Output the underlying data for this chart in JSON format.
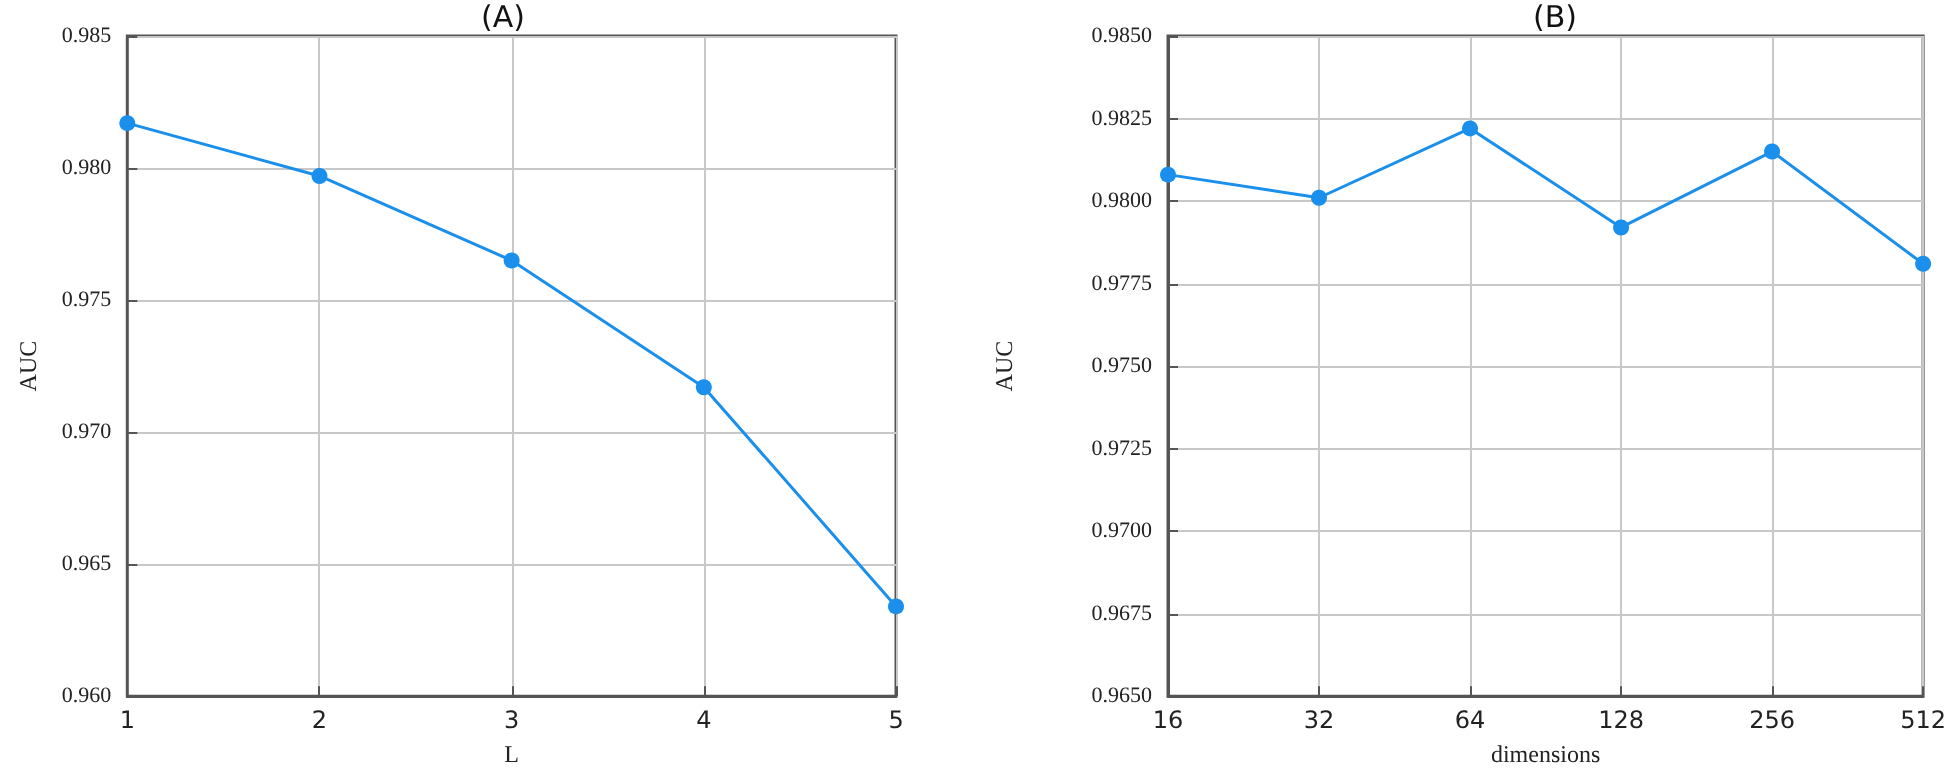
{
  "chart_data": [
    {
      "type": "line",
      "title": "(A)",
      "xlabel": "L",
      "ylabel": "AUC",
      "categories": [
        "1",
        "2",
        "3",
        "4",
        "5"
      ],
      "series": [
        {
          "color": "#1a8fec",
          "values": [
            0.9817,
            0.9797,
            0.9765,
            0.9717,
            0.9634
          ]
        }
      ],
      "ylim": [
        0.96,
        0.985
      ],
      "yticks": [
        {
          "value": 0.96,
          "label": "0.960"
        },
        {
          "value": 0.965,
          "label": "0.965"
        },
        {
          "value": 0.97,
          "label": "0.970"
        },
        {
          "value": 0.975,
          "label": "0.975"
        },
        {
          "value": 0.98,
          "label": "0.980"
        },
        {
          "value": 0.985,
          "label": "0.985"
        }
      ],
      "grid": true,
      "marker": "circle",
      "line_style": "solid"
    },
    {
      "type": "line",
      "title": "(B)",
      "xlabel": "dimensions",
      "ylabel": "AUC",
      "categories": [
        "16",
        "32",
        "64",
        "128",
        "256",
        "512"
      ],
      "series": [
        {
          "color": "#1a8fec",
          "values": [
            0.9808,
            0.9801,
            0.9822,
            0.9792,
            0.9815,
            0.9781
          ]
        }
      ],
      "ylim": [
        0.965,
        0.985
      ],
      "yticks": [
        {
          "value": 0.965,
          "label": "0.9650"
        },
        {
          "value": 0.9675,
          "label": "0.9675"
        },
        {
          "value": 0.97,
          "label": "0.9700"
        },
        {
          "value": 0.9725,
          "label": "0.9725"
        },
        {
          "value": 0.975,
          "label": "0.9750"
        },
        {
          "value": 0.9775,
          "label": "0.9775"
        },
        {
          "value": 0.98,
          "label": "0.9800"
        },
        {
          "value": 0.9825,
          "label": "0.9825"
        },
        {
          "value": 0.985,
          "label": "0.9850"
        }
      ],
      "grid": true,
      "marker": "circle",
      "line_style": "solid"
    }
  ]
}
